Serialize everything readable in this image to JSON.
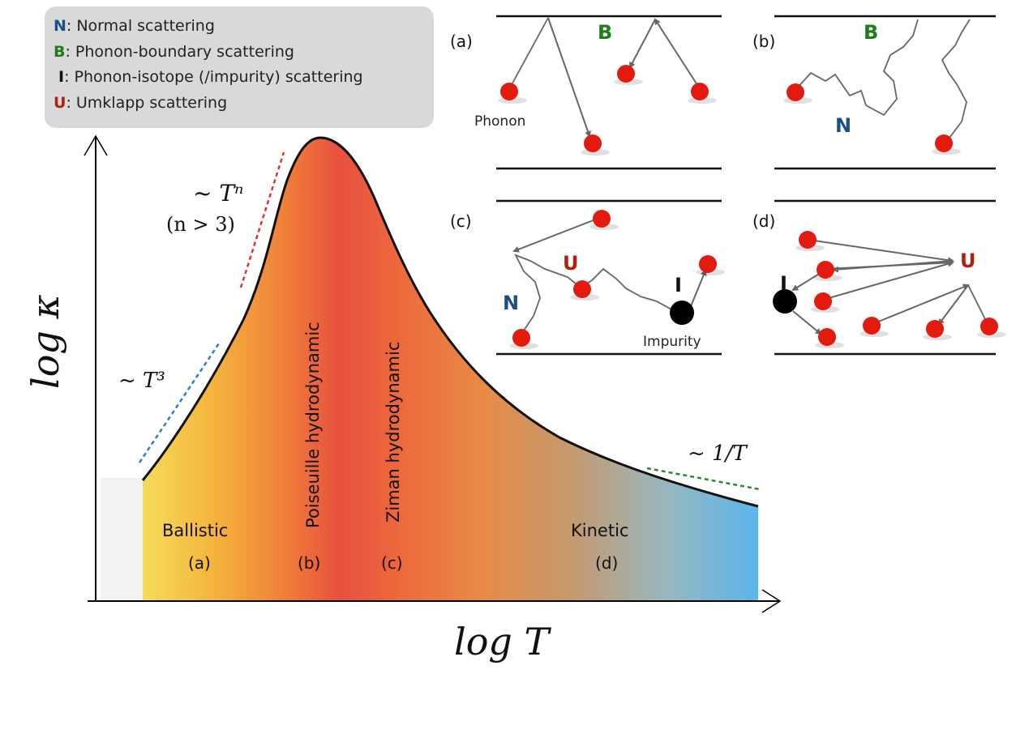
{
  "legend": {
    "items": [
      {
        "key": "N",
        "text": ": Normal scattering",
        "color": "#1b4f8a"
      },
      {
        "key": "B",
        "text": ": Phonon-boundary scattering",
        "color": "#1e7b1e"
      },
      {
        "key": "I",
        "text": ": Phonon-isotope (/impurity) scattering",
        "color": "#111111"
      },
      {
        "key": "U",
        "text": ": Umklapp scattering",
        "color": "#b0200f"
      }
    ]
  },
  "axes": {
    "y_label": "log κ",
    "x_label": "log T"
  },
  "slopes": {
    "t3": "~ T³",
    "tn": "~ Tⁿ",
    "tn_cond": "(n > 3)",
    "inv_t": "~ 1/T"
  },
  "regimes": {
    "ballistic": "Ballistic",
    "ballistic_tag": "(a)",
    "poiseuille": "Poiseuille hydrodynamic",
    "poiseuille_tag": "(b)",
    "ziman": "Ziman hydrodynamic",
    "ziman_tag": "(c)",
    "kinetic": "Kinetic",
    "kinetic_tag": "(d)"
  },
  "panels": {
    "a": {
      "label": "(a)",
      "letter": "B",
      "phonon_text": "Phonon"
    },
    "b": {
      "label": "(b)",
      "letter_b": "B",
      "letter_n": "N"
    },
    "c": {
      "label": "(c)",
      "letter_u": "U",
      "letter_n": "N",
      "letter_i": "I",
      "impurity_text": "Impurity"
    },
    "d": {
      "label": "(d)",
      "letter_i": "I",
      "letter_u": "U"
    }
  },
  "colors": {
    "normal": "#1b4f8a",
    "boundary": "#1e7b1e",
    "umklapp": "#b0200f",
    "phonon": "#e31a0e"
  }
}
